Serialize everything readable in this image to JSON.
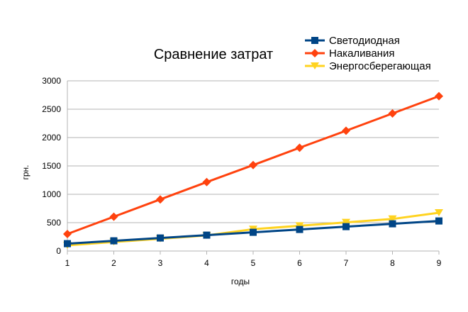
{
  "chart_data": {
    "type": "line",
    "title": "Сравнение затрат",
    "xlabel": "годы",
    "ylabel": "грн.",
    "x": [
      1,
      2,
      3,
      4,
      5,
      6,
      7,
      8,
      9
    ],
    "ylim": [
      0,
      3000
    ],
    "yticks": [
      0,
      500,
      1000,
      1500,
      2000,
      2500,
      3000
    ],
    "grid": true,
    "legend_position": "top-right",
    "series": [
      {
        "name": "Светодиодная",
        "color": "#004586",
        "marker": "square",
        "values": [
          130,
          180,
          230,
          280,
          330,
          380,
          430,
          480,
          530
        ]
      },
      {
        "name": "Накаливания",
        "color": "#ff420e",
        "marker": "diamond",
        "values": [
          300,
          605,
          910,
          1215,
          1515,
          1820,
          2120,
          2425,
          2730
        ]
      },
      {
        "name": "Энергосберегающая",
        "color": "#ffd320",
        "marker": "triangle-down",
        "values": [
          100,
          160,
          215,
          275,
          385,
          445,
          505,
          565,
          675
        ]
      }
    ]
  }
}
